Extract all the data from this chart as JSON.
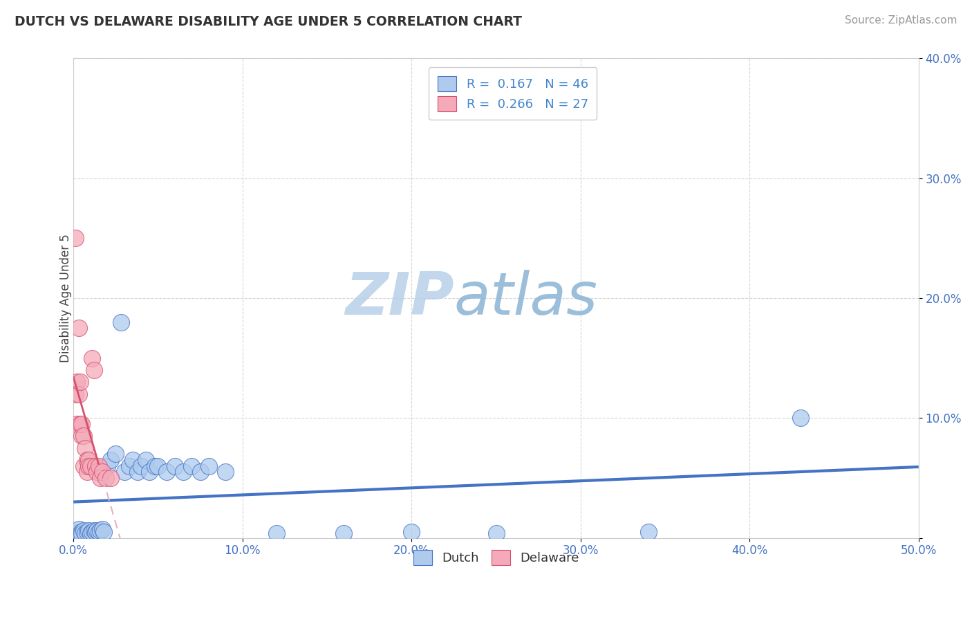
{
  "title": "DUTCH VS DELAWARE DISABILITY AGE UNDER 5 CORRELATION CHART",
  "source": "Source: ZipAtlas.com",
  "ylabel": "Disability Age Under 5",
  "xlim": [
    0.0,
    0.5
  ],
  "ylim": [
    0.0,
    0.4
  ],
  "xticks": [
    0.0,
    0.1,
    0.2,
    0.3,
    0.4,
    0.5
  ],
  "yticks": [
    0.0,
    0.1,
    0.2,
    0.3,
    0.4
  ],
  "xtick_labels": [
    "0.0%",
    "10.0%",
    "20.0%",
    "30.0%",
    "40.0%",
    "50.0%"
  ],
  "ytick_labels": [
    "",
    "10.0%",
    "20.0%",
    "30.0%",
    "40.0%"
  ],
  "R_dutch": 0.167,
  "N_dutch": 46,
  "R_delaware": 0.266,
  "N_delaware": 27,
  "dutch_color": "#aecbee",
  "delaware_color": "#f4aab9",
  "dutch_line_color": "#4472c4",
  "delaware_line_color": "#d45070",
  "delaware_dash_color": "#e8b0bc",
  "watermark_zip_color": "#c5d8f0",
  "watermark_atlas_color": "#9bbdd8",
  "legend_text_color": "#4488cc",
  "title_color": "#333333",
  "background_color": "#ffffff",
  "grid_color": "#cccccc",
  "tick_color": "#4472c4",
  "dutch_points_x": [
    0.001,
    0.002,
    0.003,
    0.003,
    0.004,
    0.005,
    0.005,
    0.006,
    0.007,
    0.008,
    0.009,
    0.01,
    0.011,
    0.012,
    0.013,
    0.014,
    0.015,
    0.016,
    0.017,
    0.018,
    0.02,
    0.022,
    0.025,
    0.028,
    0.03,
    0.033,
    0.035,
    0.038,
    0.04,
    0.043,
    0.045,
    0.048,
    0.05,
    0.055,
    0.06,
    0.065,
    0.07,
    0.075,
    0.08,
    0.09,
    0.12,
    0.16,
    0.2,
    0.25,
    0.34,
    0.43
  ],
  "dutch_points_y": [
    0.003,
    0.004,
    0.005,
    0.007,
    0.004,
    0.005,
    0.003,
    0.006,
    0.004,
    0.005,
    0.006,
    0.004,
    0.005,
    0.006,
    0.005,
    0.006,
    0.005,
    0.006,
    0.007,
    0.005,
    0.06,
    0.065,
    0.07,
    0.18,
    0.055,
    0.06,
    0.065,
    0.055,
    0.06,
    0.065,
    0.055,
    0.06,
    0.06,
    0.055,
    0.06,
    0.055,
    0.06,
    0.055,
    0.06,
    0.055,
    0.004,
    0.004,
    0.005,
    0.004,
    0.005,
    0.1
  ],
  "delaware_points_x": [
    0.001,
    0.001,
    0.002,
    0.002,
    0.003,
    0.003,
    0.004,
    0.004,
    0.005,
    0.005,
    0.006,
    0.006,
    0.007,
    0.008,
    0.008,
    0.009,
    0.009,
    0.01,
    0.011,
    0.012,
    0.013,
    0.014,
    0.015,
    0.016,
    0.017,
    0.019,
    0.022
  ],
  "delaware_points_y": [
    0.25,
    0.12,
    0.095,
    0.13,
    0.175,
    0.12,
    0.13,
    0.095,
    0.085,
    0.095,
    0.085,
    0.06,
    0.075,
    0.055,
    0.065,
    0.065,
    0.06,
    0.06,
    0.15,
    0.14,
    0.06,
    0.055,
    0.06,
    0.05,
    0.055,
    0.05,
    0.05
  ]
}
